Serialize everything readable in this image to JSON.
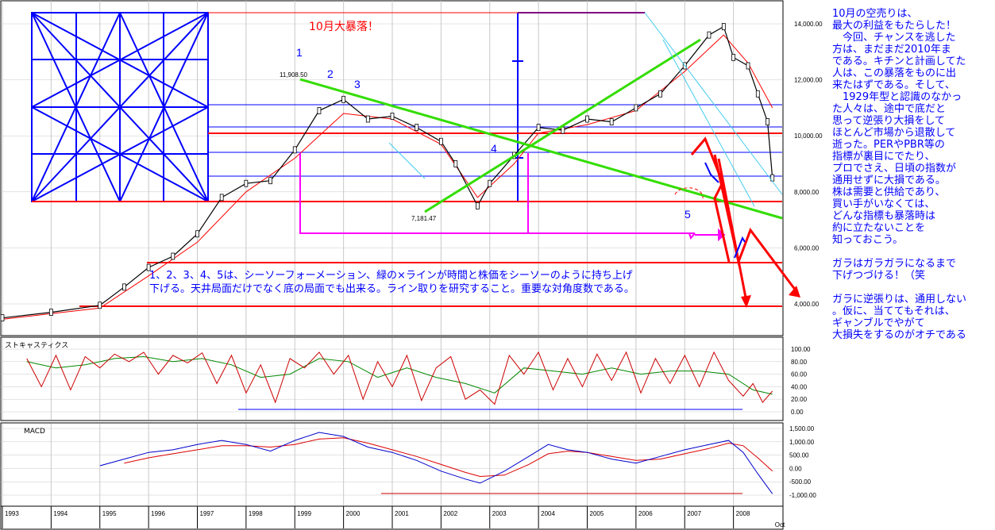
{
  "chart_data": {
    "type": "line",
    "title": "10月大暴落！",
    "x_years": [
      "1993",
      "1994",
      "1995",
      "1996",
      "1997",
      "1998",
      "1999",
      "2000",
      "2001",
      "2002",
      "2003",
      "2004",
      "2005",
      "2006",
      "2007",
      "2008"
    ],
    "x_extra_label": "Oct",
    "price_axis": {
      "ticks": [
        "14,000.00",
        "12,000.00",
        "10,000.00",
        "8,000.00",
        "6,000.00",
        "4,000.00"
      ],
      "ylim": [
        3000,
        15000
      ]
    },
    "price_series": [
      {
        "x": 1993.0,
        "y": 3500
      },
      {
        "x": 1994.0,
        "y": 3700
      },
      {
        "x": 1995.0,
        "y": 3950
      },
      {
        "x": 1995.5,
        "y": 4600
      },
      {
        "x": 1996.0,
        "y": 5300
      },
      {
        "x": 1996.5,
        "y": 5700
      },
      {
        "x": 1997.0,
        "y": 6500
      },
      {
        "x": 1997.5,
        "y": 7800
      },
      {
        "x": 1998.0,
        "y": 8300
      },
      {
        "x": 1998.5,
        "y": 8400
      },
      {
        "x": 1999.0,
        "y": 9500
      },
      {
        "x": 1999.5,
        "y": 10900
      },
      {
        "x": 2000.0,
        "y": 11300
      },
      {
        "x": 2000.5,
        "y": 10600
      },
      {
        "x": 2001.0,
        "y": 10700
      },
      {
        "x": 2001.5,
        "y": 10300
      },
      {
        "x": 2002.0,
        "y": 9800
      },
      {
        "x": 2002.3,
        "y": 9000
      },
      {
        "x": 2002.75,
        "y": 7500
      },
      {
        "x": 2003.0,
        "y": 8300
      },
      {
        "x": 2003.5,
        "y": 9300
      },
      {
        "x": 2004.0,
        "y": 10300
      },
      {
        "x": 2004.5,
        "y": 10200
      },
      {
        "x": 2005.0,
        "y": 10600
      },
      {
        "x": 2005.5,
        "y": 10500
      },
      {
        "x": 2006.0,
        "y": 11000
      },
      {
        "x": 2006.5,
        "y": 11500
      },
      {
        "x": 2007.0,
        "y": 12500
      },
      {
        "x": 2007.5,
        "y": 13600
      },
      {
        "x": 2007.8,
        "y": 13900
      },
      {
        "x": 2008.0,
        "y": 12800
      },
      {
        "x": 2008.3,
        "y": 12500
      },
      {
        "x": 2008.5,
        "y": 11500
      },
      {
        "x": 2008.7,
        "y": 10500
      },
      {
        "x": 2008.8,
        "y": 8500
      }
    ],
    "price_ma": [
      {
        "x": 1993.0,
        "y": 3450
      },
      {
        "x": 1995.0,
        "y": 3850
      },
      {
        "x": 1996.0,
        "y": 5000
      },
      {
        "x": 1997.0,
        "y": 6200
      },
      {
        "x": 1998.0,
        "y": 8000
      },
      {
        "x": 1999.0,
        "y": 9200
      },
      {
        "x": 2000.0,
        "y": 10800
      },
      {
        "x": 2001.0,
        "y": 10600
      },
      {
        "x": 2002.0,
        "y": 9700
      },
      {
        "x": 2002.75,
        "y": 7800
      },
      {
        "x": 2003.5,
        "y": 9000
      },
      {
        "x": 2004.0,
        "y": 10100
      },
      {
        "x": 2005.0,
        "y": 10400
      },
      {
        "x": 2006.0,
        "y": 10900
      },
      {
        "x": 2007.0,
        "y": 12300
      },
      {
        "x": 2007.8,
        "y": 13600
      },
      {
        "x": 2008.3,
        "y": 12600
      },
      {
        "x": 2008.8,
        "y": 11000
      }
    ],
    "price_annotations": [
      {
        "x": 1999.9,
        "y": 11908.5,
        "label": "11,908.50"
      },
      {
        "x": 2002.65,
        "y": 7181.47,
        "label": "7,181.47"
      }
    ],
    "stoch": {
      "label": "ストキャスティクス",
      "ticks": [
        "100.00",
        "80.00",
        "60.00",
        "40.00",
        "20.00",
        "0.00"
      ],
      "ylim": [
        0,
        100
      ],
      "k": [
        {
          "x": 1993.5,
          "y": 85
        },
        {
          "x": 1993.8,
          "y": 40
        },
        {
          "x": 1994.1,
          "y": 90
        },
        {
          "x": 1994.4,
          "y": 35
        },
        {
          "x": 1994.7,
          "y": 88
        },
        {
          "x": 1995.0,
          "y": 70
        },
        {
          "x": 1995.3,
          "y": 92
        },
        {
          "x": 1995.6,
          "y": 80
        },
        {
          "x": 1995.9,
          "y": 95
        },
        {
          "x": 1996.2,
          "y": 60
        },
        {
          "x": 1996.5,
          "y": 90
        },
        {
          "x": 1996.8,
          "y": 78
        },
        {
          "x": 1997.1,
          "y": 94
        },
        {
          "x": 1997.4,
          "y": 45
        },
        {
          "x": 1997.7,
          "y": 90
        },
        {
          "x": 1998.0,
          "y": 30
        },
        {
          "x": 1998.3,
          "y": 75
        },
        {
          "x": 1998.6,
          "y": 15
        },
        {
          "x": 1998.9,
          "y": 85
        },
        {
          "x": 1999.2,
          "y": 70
        },
        {
          "x": 1999.5,
          "y": 95
        },
        {
          "x": 1999.8,
          "y": 60
        },
        {
          "x": 2000.1,
          "y": 90
        },
        {
          "x": 2000.4,
          "y": 20
        },
        {
          "x": 2000.7,
          "y": 80
        },
        {
          "x": 2001.0,
          "y": 40
        },
        {
          "x": 2001.3,
          "y": 90
        },
        {
          "x": 2001.6,
          "y": 18
        },
        {
          "x": 2001.9,
          "y": 70
        },
        {
          "x": 2002.2,
          "y": 88
        },
        {
          "x": 2002.5,
          "y": 20
        },
        {
          "x": 2002.8,
          "y": 35
        },
        {
          "x": 2003.1,
          "y": 12
        },
        {
          "x": 2003.4,
          "y": 90
        },
        {
          "x": 2003.7,
          "y": 60
        },
        {
          "x": 2004.0,
          "y": 95
        },
        {
          "x": 2004.3,
          "y": 35
        },
        {
          "x": 2004.6,
          "y": 85
        },
        {
          "x": 2004.9,
          "y": 40
        },
        {
          "x": 2005.2,
          "y": 92
        },
        {
          "x": 2005.5,
          "y": 50
        },
        {
          "x": 2005.8,
          "y": 95
        },
        {
          "x": 2006.1,
          "y": 30
        },
        {
          "x": 2006.4,
          "y": 85
        },
        {
          "x": 2006.7,
          "y": 45
        },
        {
          "x": 2007.0,
          "y": 90
        },
        {
          "x": 2007.3,
          "y": 40
        },
        {
          "x": 2007.6,
          "y": 95
        },
        {
          "x": 2007.9,
          "y": 50
        },
        {
          "x": 2008.2,
          "y": 25
        },
        {
          "x": 2008.4,
          "y": 45
        },
        {
          "x": 2008.6,
          "y": 15
        },
        {
          "x": 2008.8,
          "y": 33
        }
      ],
      "d": [
        {
          "x": 1993.5,
          "y": 80
        },
        {
          "x": 1994.1,
          "y": 70
        },
        {
          "x": 1994.7,
          "y": 75
        },
        {
          "x": 1995.3,
          "y": 85
        },
        {
          "x": 1995.9,
          "y": 88
        },
        {
          "x": 1996.5,
          "y": 80
        },
        {
          "x": 1997.1,
          "y": 85
        },
        {
          "x": 1997.7,
          "y": 75
        },
        {
          "x": 1998.3,
          "y": 55
        },
        {
          "x": 1998.9,
          "y": 60
        },
        {
          "x": 1999.5,
          "y": 85
        },
        {
          "x": 2000.1,
          "y": 80
        },
        {
          "x": 2000.7,
          "y": 55
        },
        {
          "x": 2001.3,
          "y": 70
        },
        {
          "x": 2001.9,
          "y": 55
        },
        {
          "x": 2002.5,
          "y": 45
        },
        {
          "x": 2003.1,
          "y": 30
        },
        {
          "x": 2003.7,
          "y": 70
        },
        {
          "x": 2004.3,
          "y": 65
        },
        {
          "x": 2004.9,
          "y": 60
        },
        {
          "x": 2005.5,
          "y": 70
        },
        {
          "x": 2006.1,
          "y": 60
        },
        {
          "x": 2006.7,
          "y": 65
        },
        {
          "x": 2007.3,
          "y": 65
        },
        {
          "x": 2007.9,
          "y": 60
        },
        {
          "x": 2008.4,
          "y": 35
        },
        {
          "x": 2008.8,
          "y": 28
        }
      ]
    },
    "macd": {
      "label": "MACD",
      "ticks": [
        "1,500.00",
        "1,000.00",
        "500.00",
        "0.00",
        "-500.00",
        "-1,000.00"
      ],
      "ylim": [
        -1200,
        1800
      ],
      "macd_line": [
        {
          "x": 1995.0,
          "y": 100
        },
        {
          "x": 1995.5,
          "y": 350
        },
        {
          "x": 1996.0,
          "y": 600
        },
        {
          "x": 1996.5,
          "y": 700
        },
        {
          "x": 1997.0,
          "y": 900
        },
        {
          "x": 1997.5,
          "y": 1050
        },
        {
          "x": 1998.0,
          "y": 900
        },
        {
          "x": 1998.5,
          "y": 650
        },
        {
          "x": 1999.0,
          "y": 1050
        },
        {
          "x": 1999.5,
          "y": 1350
        },
        {
          "x": 2000.0,
          "y": 1200
        },
        {
          "x": 2000.5,
          "y": 800
        },
        {
          "x": 2001.0,
          "y": 600
        },
        {
          "x": 2001.5,
          "y": 300
        },
        {
          "x": 2002.0,
          "y": -100
        },
        {
          "x": 2002.5,
          "y": -400
        },
        {
          "x": 2002.8,
          "y": -550
        },
        {
          "x": 2003.3,
          "y": -100
        },
        {
          "x": 2003.8,
          "y": 450
        },
        {
          "x": 2004.2,
          "y": 900
        },
        {
          "x": 2004.6,
          "y": 700
        },
        {
          "x": 2005.0,
          "y": 600
        },
        {
          "x": 2005.5,
          "y": 350
        },
        {
          "x": 2006.0,
          "y": 200
        },
        {
          "x": 2006.5,
          "y": 450
        },
        {
          "x": 2007.0,
          "y": 700
        },
        {
          "x": 2007.5,
          "y": 900
        },
        {
          "x": 2007.9,
          "y": 1050
        },
        {
          "x": 2008.2,
          "y": 600
        },
        {
          "x": 2008.5,
          "y": -200
        },
        {
          "x": 2008.8,
          "y": -950
        }
      ],
      "signal_line": [
        {
          "x": 1995.5,
          "y": 200
        },
        {
          "x": 1996.0,
          "y": 400
        },
        {
          "x": 1996.5,
          "y": 550
        },
        {
          "x": 1997.0,
          "y": 700
        },
        {
          "x": 1997.5,
          "y": 850
        },
        {
          "x": 1998.0,
          "y": 850
        },
        {
          "x": 1998.5,
          "y": 800
        },
        {
          "x": 1999.0,
          "y": 900
        },
        {
          "x": 1999.5,
          "y": 1100
        },
        {
          "x": 2000.0,
          "y": 1150
        },
        {
          "x": 2000.5,
          "y": 950
        },
        {
          "x": 2001.0,
          "y": 700
        },
        {
          "x": 2001.5,
          "y": 450
        },
        {
          "x": 2002.0,
          "y": 150
        },
        {
          "x": 2002.5,
          "y": -150
        },
        {
          "x": 2002.8,
          "y": -300
        },
        {
          "x": 2003.3,
          "y": -250
        },
        {
          "x": 2003.8,
          "y": 150
        },
        {
          "x": 2004.2,
          "y": 550
        },
        {
          "x": 2004.6,
          "y": 650
        },
        {
          "x": 2005.0,
          "y": 600
        },
        {
          "x": 2005.5,
          "y": 450
        },
        {
          "x": 2006.0,
          "y": 300
        },
        {
          "x": 2006.5,
          "y": 350
        },
        {
          "x": 2007.0,
          "y": 550
        },
        {
          "x": 2007.5,
          "y": 750
        },
        {
          "x": 2007.9,
          "y": 950
        },
        {
          "x": 2008.2,
          "y": 850
        },
        {
          "x": 2008.5,
          "y": 400
        },
        {
          "x": 2008.8,
          "y": -100
        }
      ]
    },
    "wave_labels": [
      "1",
      "2",
      "3",
      "4",
      "5"
    ],
    "annotation_bottom_line1": "1、2、3、4、5は、シーソーフォーメーション、緑の×ラインが時間と株価をシーソーのように持ち上げ",
    "annotation_bottom_line2": "下げる。天井局面だけでなく底の局面でも出来る。ライン取りを研究すること。重要な対角度数である。",
    "commentary": [
      "10月の空売りは、",
      "最大の利益をもたらした！",
      "　今回、チャンスを逃した",
      "方は、まだまだ2010年ま",
      "である。キチンと計画してた",
      "人は、この暴落をものに出",
      "来たはずである。そして、",
      "　1929年型と認識のなかっ",
      "た人々は、途中で底だと",
      "思って逆張り大損をして",
      "ほとんど市場から退散して",
      "逝った。PERやPBR等の",
      "指標が裏目にでたり、",
      "プロでさえ、日頃の指数が",
      "通用せずに大損である。",
      "株は需要と供給であり、",
      "買い手がいなくては、",
      "どんな指標も暴落時は",
      "約に立たないことを",
      "知っておこう。",
      "",
      "ガラはガラガラになるまで",
      "下げつづける！（笑",
      "",
      "ガラに逆張りは、通用しない",
      "。仮に、当ててもそれは、",
      "ギャンブルでやがて",
      "大損失をするのがオチである"
    ],
    "colors": {
      "blue": "#0000ff",
      "red": "#ff0000",
      "green": "#33dd00",
      "magenta": "#ff00ff",
      "cyan": "#44ccee",
      "grid": "#c8c8c8",
      "stoch_k": "#cc0000",
      "stoch_d": "#008800"
    }
  }
}
